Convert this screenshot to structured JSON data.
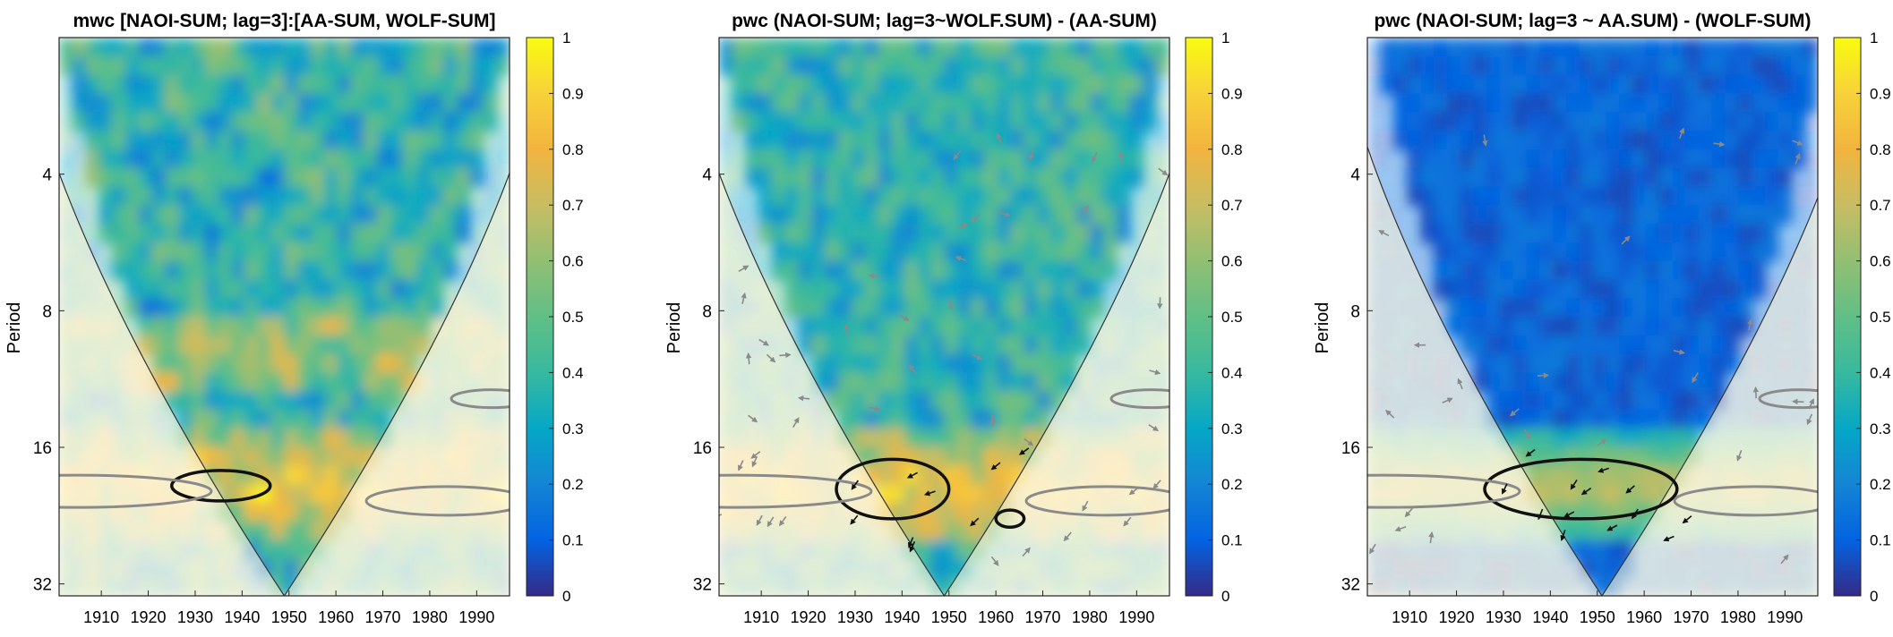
{
  "chart_data": [
    {
      "type": "heatmap",
      "title": "mwc [NAOI-SUM; lag=3]:[AA-SUM, WOLF-SUM]",
      "ylabel": "Period",
      "xlabel": "",
      "x_ticks": [
        "1910",
        "1920",
        "1930",
        "1940",
        "1950",
        "1960",
        "1970",
        "1980",
        "1990"
      ],
      "y_ticks": [
        "4",
        "8",
        "16",
        "32"
      ],
      "xlim": [
        1901,
        1997
      ],
      "period_range": [
        2,
        34
      ],
      "colorbar": {
        "range": [
          0,
          1
        ],
        "ticks": [
          "0",
          "0.1",
          "0.2",
          "0.3",
          "0.4",
          "0.5",
          "0.6",
          "0.7",
          "0.8",
          "0.9",
          "1"
        ]
      },
      "cone_of_influence": {
        "apex_year": 1949,
        "apex_period": 34
      },
      "significant_regions": [
        {
          "x": [
            1925,
            1946
          ],
          "period": [
            18,
            21
          ]
        }
      ],
      "arrows": false
    },
    {
      "type": "heatmap",
      "title": "pwc (NAOI-SUM; lag=3~WOLF.SUM) - (AA-SUM)",
      "ylabel": "Period",
      "xlabel": "",
      "x_ticks": [
        "1910",
        "1920",
        "1930",
        "1940",
        "1950",
        "1960",
        "1970",
        "1980",
        "1990"
      ],
      "y_ticks": [
        "4",
        "8",
        "16",
        "32"
      ],
      "xlim": [
        1901,
        1997
      ],
      "period_range": [
        2,
        34
      ],
      "colorbar": {
        "range": [
          0,
          1
        ],
        "ticks": [
          "0",
          "0.1",
          "0.2",
          "0.3",
          "0.4",
          "0.5",
          "0.6",
          "0.7",
          "0.8",
          "0.9",
          "1"
        ]
      },
      "cone_of_influence": {
        "apex_year": 1949,
        "apex_period": 34
      },
      "significant_regions": [
        {
          "x": [
            1926,
            1950
          ],
          "period": [
            17,
            23
          ]
        },
        {
          "x": [
            1960,
            1966
          ],
          "period": [
            22,
            24
          ]
        }
      ],
      "arrows": true
    },
    {
      "type": "heatmap",
      "title": "pwc (NAOI-SUM; lag=3 ~ AA.SUM) - (WOLF-SUM)",
      "ylabel": "Period",
      "xlabel": "",
      "x_ticks": [
        "1910",
        "1920",
        "1930",
        "1940",
        "1950",
        "1960",
        "1970",
        "1980",
        "1990"
      ],
      "y_ticks": [
        "4",
        "8",
        "16",
        "32"
      ],
      "xlim": [
        1901,
        1997
      ],
      "period_range": [
        2,
        34
      ],
      "colorbar": {
        "range": [
          0,
          1
        ],
        "ticks": [
          "0",
          "0.1",
          "0.2",
          "0.3",
          "0.4",
          "0.5",
          "0.6",
          "0.7",
          "0.8",
          "0.9",
          "1"
        ]
      },
      "cone_of_influence": {
        "apex_year": 1951,
        "apex_period": 34
      },
      "significant_regions": [
        {
          "x": [
            1926,
            1967
          ],
          "period": [
            17,
            23
          ]
        }
      ],
      "arrows": true
    }
  ]
}
